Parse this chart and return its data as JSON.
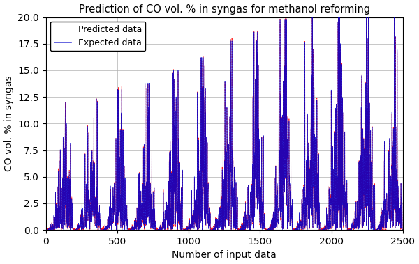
{
  "title": "Prediction of CO vol. % in syngas for methanol reforming",
  "xlabel": "Number of input data",
  "ylabel": "CO vol. % in syngas",
  "xlim": [
    0,
    2500
  ],
  "ylim": [
    0,
    20.0
  ],
  "yticks": [
    0.0,
    2.5,
    5.0,
    7.5,
    10.0,
    12.5,
    15.0,
    17.5,
    20.0
  ],
  "xticks": [
    0,
    500,
    1000,
    1500,
    2000,
    2500
  ],
  "expected_color": "#0000cc",
  "predicted_color": "#ff0000",
  "legend_expected": "Expected data",
  "legend_predicted": "Predicted data",
  "n_groups": 13,
  "total_points": 2500,
  "background_color": "#ffffff",
  "grid_color": "#b0b0b0",
  "group_peak_heights": [
    10.0,
    10.5,
    11.0,
    11.5,
    12.5,
    13.5,
    14.8,
    15.5,
    16.5,
    17.0,
    17.5,
    18.0,
    18.2
  ]
}
